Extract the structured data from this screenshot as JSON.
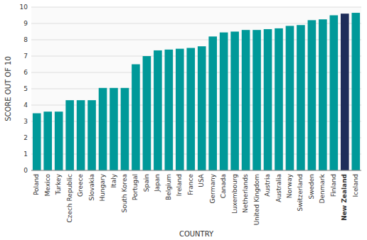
{
  "chart_data": {
    "type": "bar",
    "categories": [
      "Poland",
      "Mexico",
      "Turkey",
      "Czech Republic",
      "Greece",
      "Slovakia",
      "Hungary",
      "Italy",
      "South Korea",
      "Portugal",
      "Spain",
      "Japan",
      "Belgium",
      "Ireland",
      "France",
      "USA",
      "Germany",
      "Canada",
      "Luxembourg",
      "Netherlands",
      "United Kingdom",
      "Austria",
      "Australia",
      "Norway",
      "Switzerland",
      "Sweden",
      "Denmark",
      "Finland",
      "New Zealand",
      "Iceland"
    ],
    "values": [
      3.5,
      3.6,
      3.6,
      4.3,
      4.3,
      4.3,
      5.05,
      5.05,
      5.05,
      6.5,
      7.0,
      7.35,
      7.4,
      7.45,
      7.5,
      7.6,
      8.2,
      8.45,
      8.5,
      8.6,
      8.6,
      8.65,
      8.7,
      8.85,
      8.9,
      9.2,
      9.25,
      9.5,
      9.6,
      9.65
    ],
    "colors": [
      "#009999",
      "#009999",
      "#009999",
      "#009999",
      "#009999",
      "#009999",
      "#009999",
      "#009999",
      "#009999",
      "#009999",
      "#009999",
      "#009999",
      "#009999",
      "#009999",
      "#009999",
      "#009999",
      "#009999",
      "#009999",
      "#009999",
      "#009999",
      "#009999",
      "#009999",
      "#009999",
      "#009999",
      "#009999",
      "#009999",
      "#009999",
      "#009999",
      "#1e2d5a",
      "#009999"
    ],
    "x_label": "COUNTRY",
    "y_label": "SCORE OUT OF 10",
    "ylim": [
      0,
      10
    ],
    "yticks": [
      0,
      1,
      2,
      3,
      4,
      5,
      6,
      7,
      8,
      9,
      10
    ],
    "grid": true
  }
}
